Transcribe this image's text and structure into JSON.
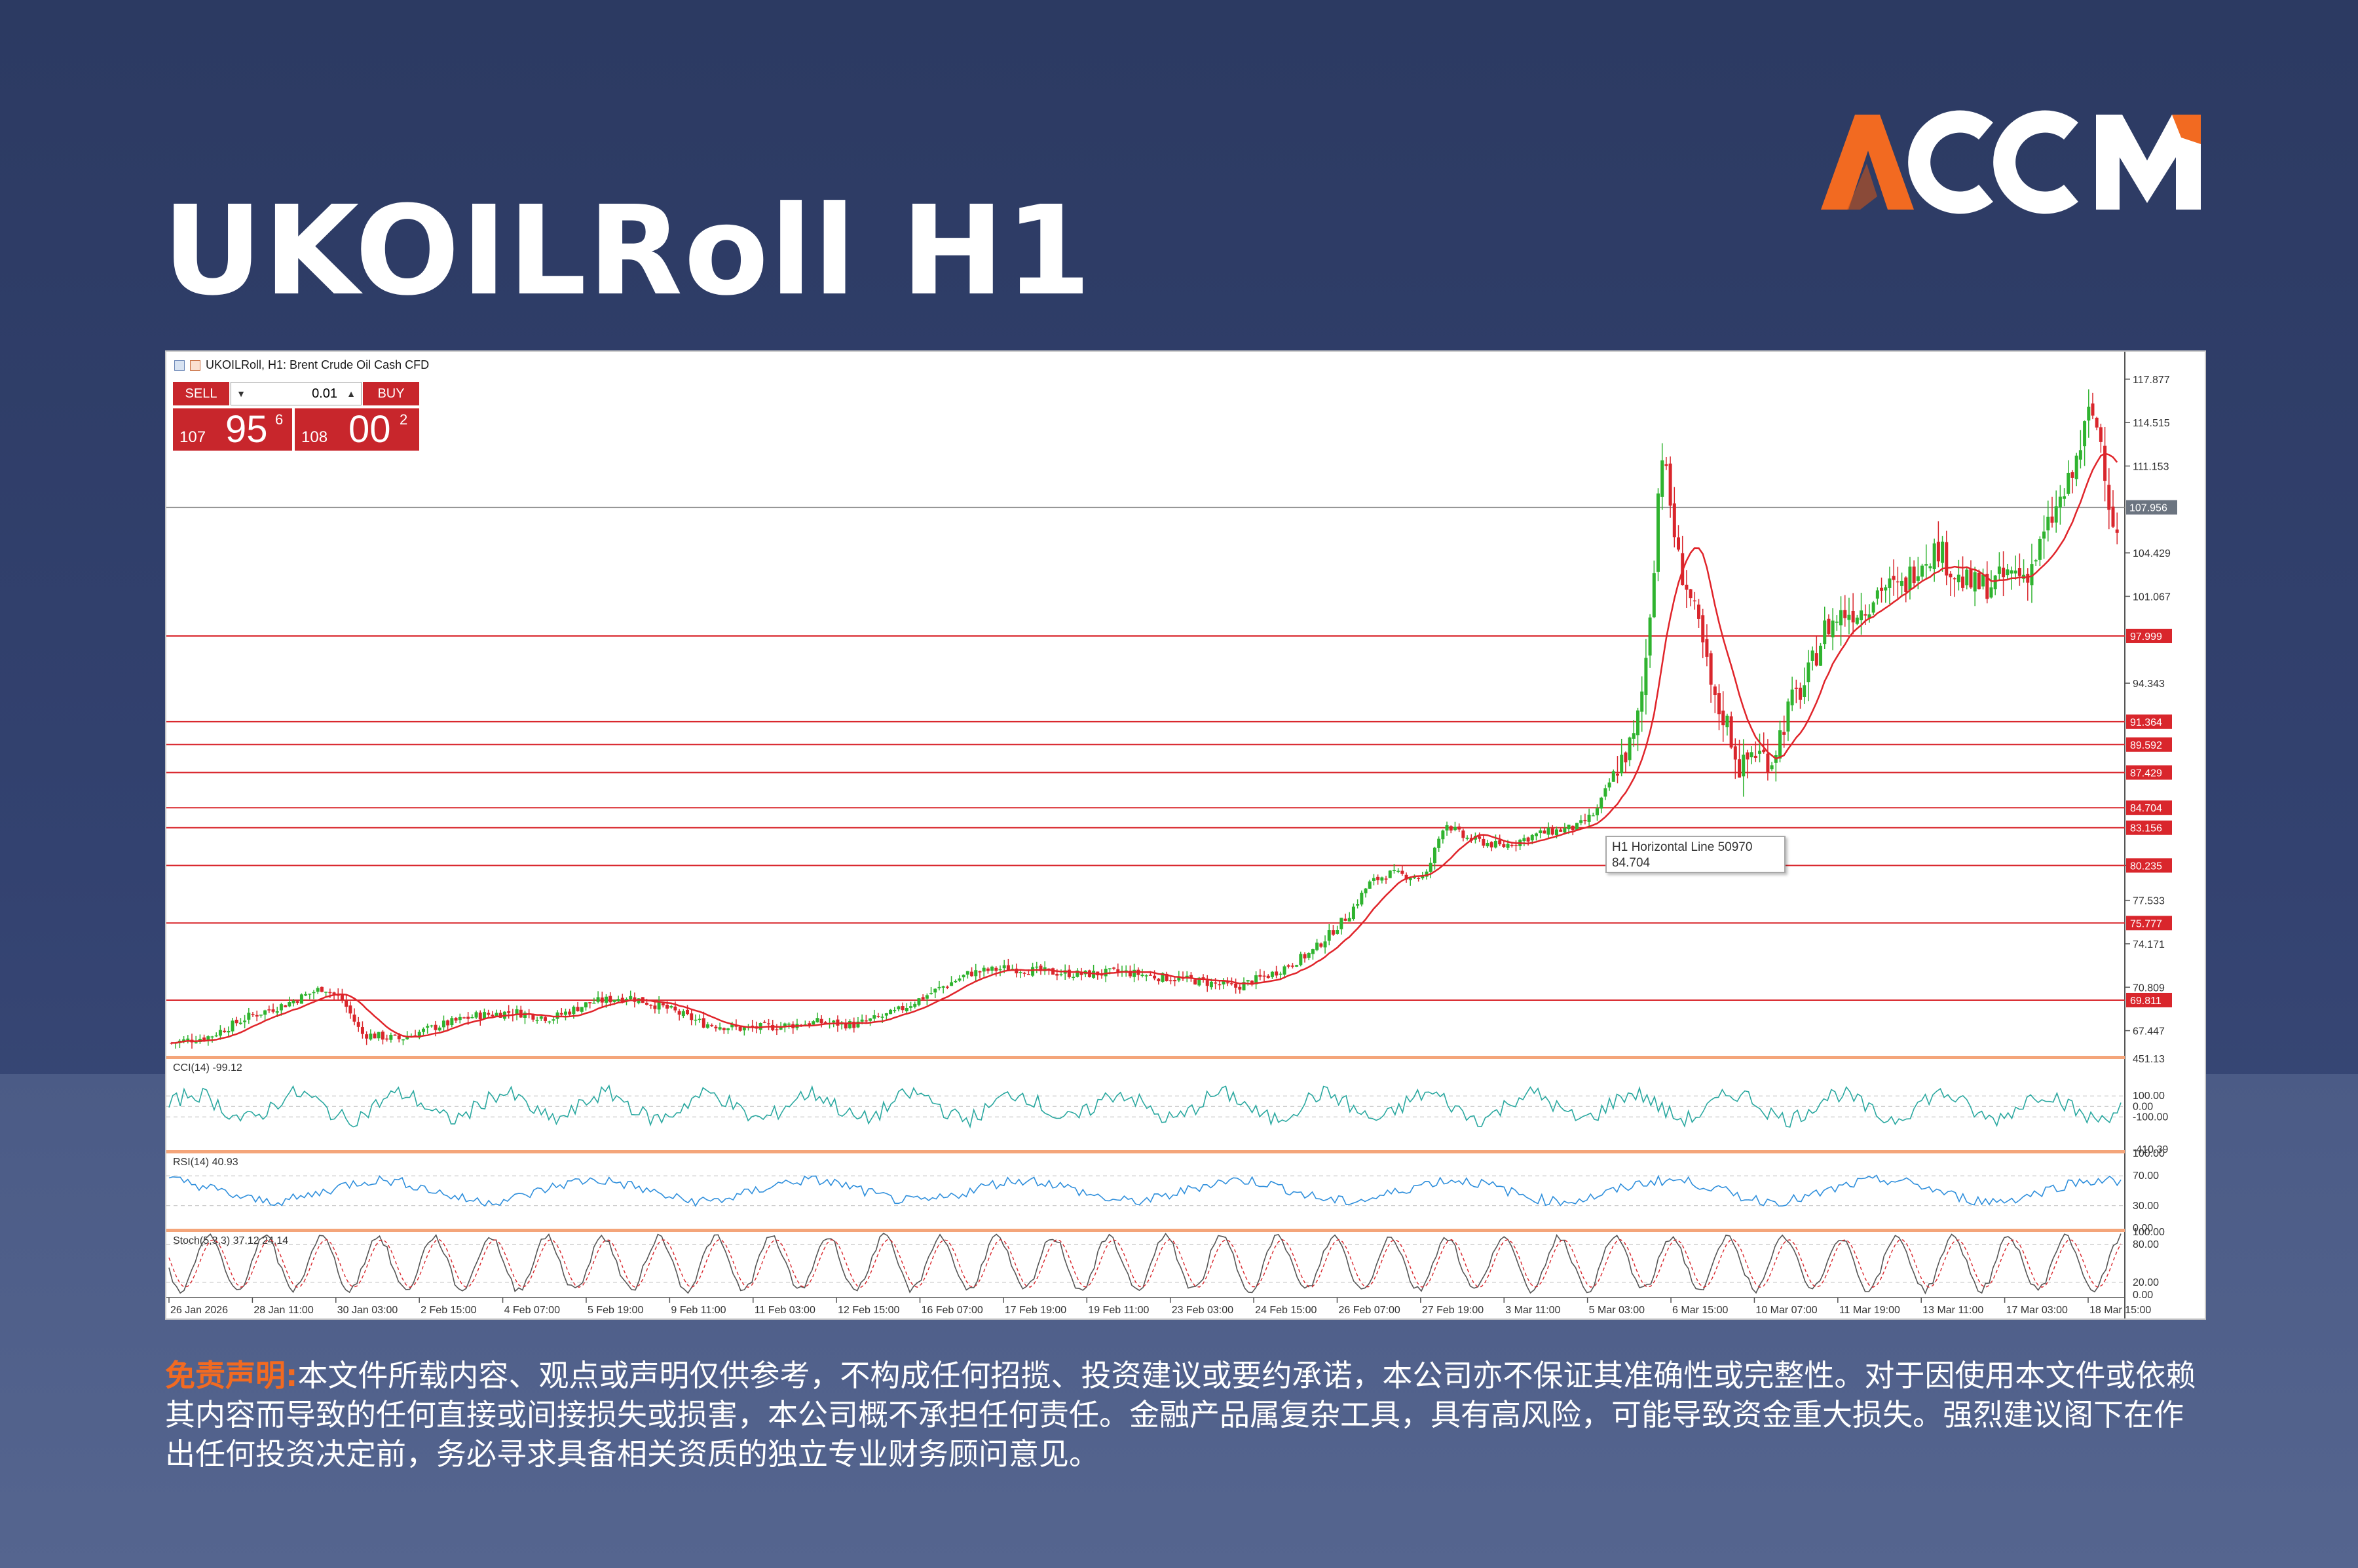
{
  "page": {
    "title": "UKOILRoll H1",
    "logo_text": "ACCM",
    "disclaimer_label": "免责声明:",
    "disclaimer_text": "本文件所载内容、观点或声明仅供参考，不构成任何招揽、投资建议或要约承诺，本公司亦不保证其准确性或完整性。对于因使用本文件或依赖其内容而导致的任何直接或间接损失或损害，本公司概不承担任何责任。金融产品属复杂工具，具有高风险，可能导致资金重大损失。强烈建议阁下在作出任何投资决定前，务必寻求具备相关资质的独立专业财务顾问意见。",
    "colors": {
      "logo_orange": "#f26a21",
      "logo_white": "#ffffff",
      "disclaimer_label": "#f26a21"
    }
  },
  "chart_header": {
    "text": "UKOILRoll, H1:  Brent Crude Oil Cash CFD"
  },
  "trade_panel": {
    "sell_label": "SELL",
    "buy_label": "BUY",
    "lot_value": "0.01",
    "sell_price_small": "107",
    "sell_price_big": "95",
    "sell_price_sup": "6",
    "buy_price_small": "108",
    "buy_price_big": "00",
    "buy_price_sup": "2"
  },
  "tooltip": {
    "line1": "H1 Horizontal Line 50970",
    "line2": "84.704"
  },
  "chart_data": {
    "type": "candlestick",
    "symbol": "UKOILRoll",
    "timeframe": "H1",
    "ylim": [
      65.5,
      120.0
    ],
    "price_ticks": [
      "117.877",
      "114.515",
      "111.153",
      "104.429",
      "101.067",
      "94.343",
      "80.235",
      "77.533",
      "74.171",
      "70.809",
      "67.447"
    ],
    "current_price": "107.956",
    "horizontal_levels": [
      "97.999",
      "91.364",
      "89.592",
      "87.429",
      "84.704",
      "83.156",
      "80.235",
      "75.777",
      "69.811"
    ],
    "level_values": [
      97.999,
      91.364,
      89.592,
      87.429,
      84.704,
      83.156,
      80.235,
      75.777,
      69.811
    ],
    "x_labels": [
      "26 Jan 2026",
      "28 Jan 11:00",
      "30 Jan 03:00",
      "2 Feb 15:00",
      "4 Feb 07:00",
      "5 Feb 19:00",
      "9 Feb 11:00",
      "11 Feb 03:00",
      "12 Feb 15:00",
      "16 Feb 07:00",
      "17 Feb 19:00",
      "19 Feb 11:00",
      "23 Feb 03:00",
      "24 Feb 15:00",
      "26 Feb 07:00",
      "27 Feb 19:00",
      "3 Mar 11:00",
      "5 Mar 03:00",
      "6 Mar 15:00",
      "10 Mar 07:00",
      "11 Mar 19:00",
      "13 Mar 11:00",
      "17 Mar 03:00",
      "18 Mar 15:00"
    ],
    "price_path": [
      [
        0,
        66.5
      ],
      [
        2,
        67.0
      ],
      [
        4,
        68.5
      ],
      [
        6,
        69.5
      ],
      [
        8,
        70.8
      ],
      [
        9,
        69.8
      ],
      [
        10,
        67.2
      ],
      [
        12,
        66.8
      ],
      [
        14,
        67.8
      ],
      [
        16,
        68.6
      ],
      [
        18,
        68.9
      ],
      [
        20,
        68.4
      ],
      [
        22,
        69.6
      ],
      [
        24,
        70.1
      ],
      [
        26,
        69.2
      ],
      [
        28,
        68.0
      ],
      [
        30,
        67.6
      ],
      [
        32,
        67.8
      ],
      [
        34,
        68.1
      ],
      [
        36,
        67.9
      ],
      [
        38,
        68.8
      ],
      [
        40,
        70.4
      ],
      [
        42,
        71.9
      ],
      [
        44,
        72.3
      ],
      [
        46,
        72.0
      ],
      [
        48,
        71.8
      ],
      [
        50,
        72.0
      ],
      [
        52,
        71.6
      ],
      [
        54,
        71.3
      ],
      [
        56,
        70.8
      ],
      [
        58,
        71.9
      ],
      [
        60,
        73.5
      ],
      [
        62,
        76.5
      ],
      [
        63,
        78.8
      ],
      [
        64,
        79.6
      ],
      [
        66,
        79.3
      ],
      [
        67,
        83.6
      ],
      [
        68,
        82.4
      ],
      [
        70,
        81.7
      ],
      [
        72,
        82.7
      ],
      [
        74,
        83.2
      ],
      [
        75,
        84.4
      ],
      [
        76,
        87.7
      ],
      [
        77,
        90.0
      ],
      [
        77.5,
        94.6
      ],
      [
        78,
        103.2
      ],
      [
        78.4,
        112.8
      ],
      [
        78.8,
        109.0
      ],
      [
        79.3,
        103.9
      ],
      [
        79.8,
        101.6
      ],
      [
        80.5,
        97.8
      ],
      [
        81.2,
        92.7
      ],
      [
        81.8,
        91.6
      ],
      [
        82.6,
        87.5
      ],
      [
        83.2,
        89.1
      ],
      [
        84.2,
        88.4
      ],
      [
        85.2,
        92.7
      ],
      [
        86,
        94.3
      ],
      [
        87,
        98.5
      ],
      [
        88,
        99.8
      ],
      [
        89,
        100.1
      ],
      [
        90,
        101.9
      ],
      [
        91,
        101.5
      ],
      [
        92,
        103.9
      ],
      [
        93,
        104.8
      ],
      [
        94,
        102.4
      ],
      [
        95,
        101.8
      ],
      [
        96,
        102.1
      ],
      [
        97,
        103.0
      ],
      [
        97.5,
        102.7
      ],
      [
        98,
        103.7
      ],
      [
        99,
        107.2
      ],
      [
        100,
        110.1
      ],
      [
        101,
        115.6
      ],
      [
        101.6,
        112.9
      ],
      [
        102,
        108.2
      ],
      [
        102.4,
        105.6
      ]
    ],
    "indicators": [
      {
        "name": "CCI",
        "label": "CCI(14) -99.12",
        "ticks": [
          "451.13",
          "100.00",
          "0.00",
          "-100.00",
          "-410.39"
        ]
      },
      {
        "name": "RSI",
        "label": "RSI(14) 40.93",
        "ticks": [
          "100.00",
          "70.00",
          "30.00",
          "0.00"
        ]
      },
      {
        "name": "Stochastic",
        "label": "Stoch(5,3,3) 37.12 24.14",
        "ticks": [
          "100.00",
          "80.00",
          "20.00",
          "0.00"
        ]
      }
    ],
    "colors": {
      "bull": "#2fb32f",
      "bear": "#d9262c",
      "ma": "#e0242a",
      "level": "#d9262c",
      "current": "#7a7a7a",
      "cci": "#2aa8a0",
      "rsi": "#2f8fdc",
      "stoch_main": "#555555",
      "stoch_signal": "#d9262c"
    }
  }
}
